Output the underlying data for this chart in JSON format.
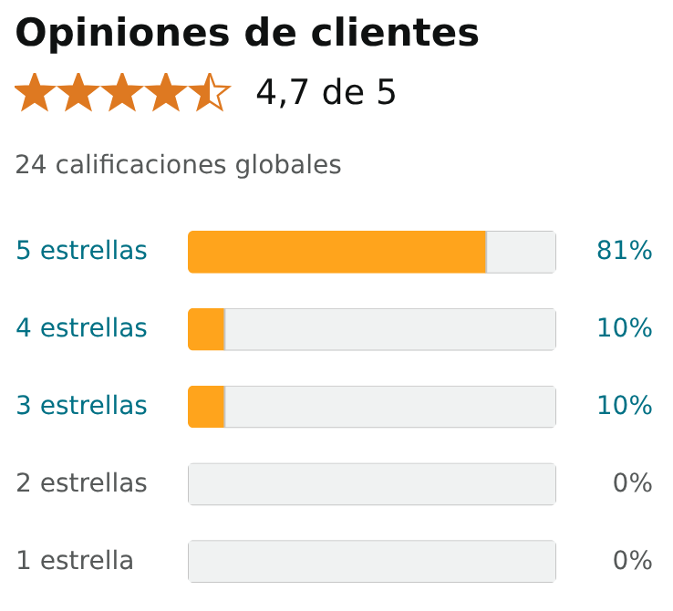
{
  "chart_data": {
    "type": "bar",
    "orientation": "horizontal",
    "stacked": true,
    "title": "Opiniones de clientes",
    "subtitle": "4,7 de 5",
    "annotations": [
      "24 calificaciones globales"
    ],
    "categories": [
      "5 estrellas",
      "4 estrellas",
      "3 estrellas",
      "2 estrellas",
      "1 estrella"
    ],
    "series": [
      {
        "color": "#ffa41c",
        "values": [
          81,
          10,
          10,
          0,
          0
        ],
        "value_labels": [
          "81%",
          "10%",
          "10%",
          "0%",
          "0%"
        ]
      },
      {
        "color": "#f0f2f2",
        "values": [
          19,
          90,
          90,
          100,
          100
        ]
      }
    ],
    "xlim": [
      0,
      100
    ],
    "tick_labels": "y"
  }
}
